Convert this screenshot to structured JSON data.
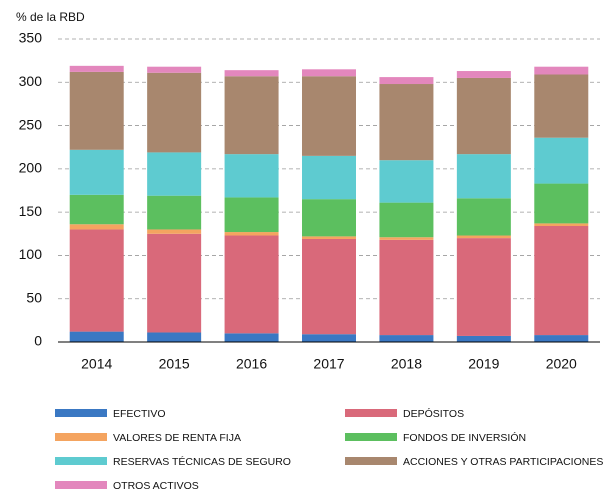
{
  "chart_data": {
    "type": "stacked_bar",
    "y_axis_label": "% de la RBD",
    "categories": [
      "2014",
      "2015",
      "2016",
      "2017",
      "2018",
      "2019",
      "2020"
    ],
    "series": [
      {
        "name": "EFECTIVO",
        "color": "#3a78c3",
        "values": [
          12,
          11,
          10,
          9,
          8,
          7,
          8
        ]
      },
      {
        "name": "DEPÓSITOS",
        "color": "#d9697a",
        "values": [
          118,
          114,
          113,
          110,
          110,
          113,
          126
        ]
      },
      {
        "name": "VALORES DE RENTA FIJA",
        "color": "#f4a460",
        "values": [
          6,
          5,
          4,
          3,
          3,
          3,
          3
        ]
      },
      {
        "name": "FONDOS DE INVERSIÓN",
        "color": "#5cbf5f",
        "values": [
          34,
          39,
          40,
          43,
          40,
          43,
          46
        ]
      },
      {
        "name": "RESERVAS TÉCNICAS DE SEGURO",
        "color": "#5ecbd0",
        "values": [
          52,
          50,
          50,
          50,
          49,
          51,
          53
        ]
      },
      {
        "name": "ACCIONES Y OTRAS PARTICIPACIONES",
        "color": "#a8876e",
        "values": [
          90,
          92,
          90,
          92,
          88,
          88,
          73
        ]
      },
      {
        "name": "OTROS ACTIVOS",
        "color": "#e387bd",
        "values": [
          7,
          7,
          7,
          8,
          8,
          8,
          9
        ]
      }
    ],
    "ylim": [
      0,
      350
    ],
    "yticks": [
      0,
      50,
      100,
      150,
      200,
      250,
      300,
      350
    ],
    "grid": true
  }
}
